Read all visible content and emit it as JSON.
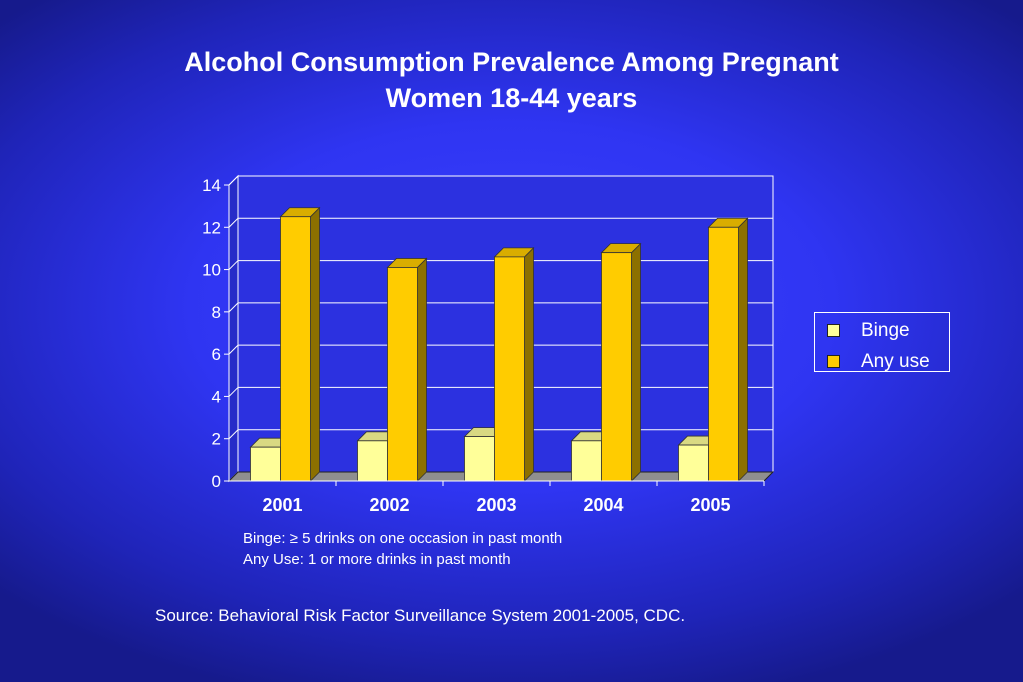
{
  "page": {
    "title_line1": "Alcohol Consumption Prevalence Among Pregnant",
    "title_line2": "Women 18-44 years",
    "note_binge": "Binge: ≥ 5 drinks on one occasion in past month",
    "note_any": "Any Use: 1 or more drinks in past month",
    "source": "Source: Behavioral Risk Factor Surveillance System 2001-2005, CDC."
  },
  "chart_data": {
    "type": "bar",
    "title": "Alcohol Consumption Prevalence Among Pregnant Women 18-44 years",
    "categories": [
      "2001",
      "2002",
      "2003",
      "2004",
      "2005"
    ],
    "series": [
      {
        "name": "Binge",
        "values": [
          1.6,
          1.9,
          2.1,
          1.9,
          1.7
        ],
        "color": "#ffff99"
      },
      {
        "name": "Any use",
        "values": [
          12.5,
          10.1,
          10.6,
          10.8,
          12.0
        ],
        "color": "#ffcc00"
      }
    ],
    "xlabel": "",
    "ylabel": "",
    "ylim": [
      0,
      14
    ],
    "yticks": [
      0,
      2,
      4,
      6,
      8,
      10,
      12,
      14
    ],
    "grid": true,
    "legend": "right",
    "style": "3d-bar"
  }
}
